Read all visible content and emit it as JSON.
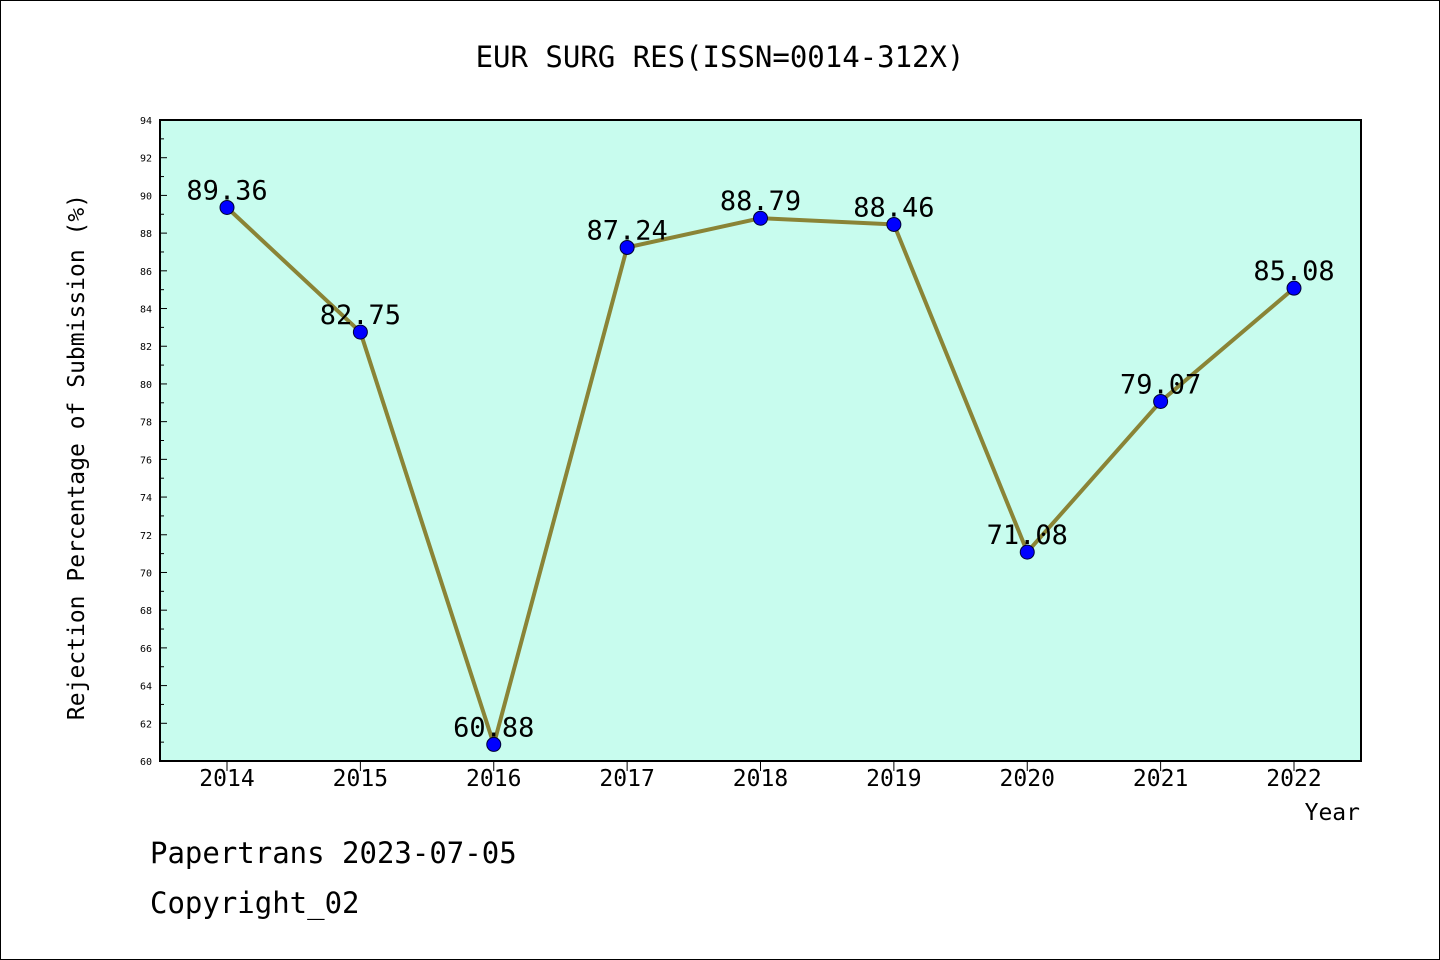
{
  "chart_data": {
    "type": "line",
    "title": "EUR SURG RES(ISSN=0014-312X)",
    "xlabel": "Year",
    "ylabel": "Rejection Percentage of Submission (%)",
    "categories": [
      "2014",
      "2015",
      "2016",
      "2017",
      "2018",
      "2019",
      "2020",
      "2021",
      "2022"
    ],
    "values": [
      89.36,
      82.75,
      60.88,
      87.24,
      88.79,
      88.46,
      71.08,
      79.07,
      85.08
    ],
    "data_labels": [
      "89.36",
      "82.75",
      "60.88",
      "87.24",
      "88.79",
      "88.46",
      "71.08",
      "79.07",
      "85.08"
    ],
    "ylim": [
      60,
      94
    ],
    "yticks": [
      "60",
      "62",
      "64",
      "66",
      "68",
      "70",
      "72",
      "74",
      "76",
      "78",
      "80",
      "82",
      "84",
      "86",
      "88",
      "90",
      "92",
      "94"
    ],
    "grid": false,
    "legend": "none",
    "colors": {
      "plot_background": "#c8fcee",
      "line": "#8a8436",
      "marker": "#0000ff"
    }
  },
  "footer": {
    "line1": "Papertrans 2023-07-05",
    "line2": "Copyright_02"
  }
}
